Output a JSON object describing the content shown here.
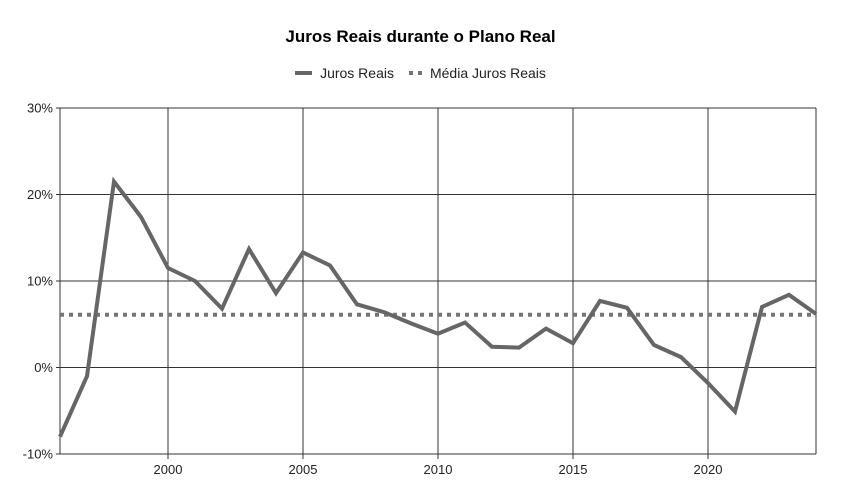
{
  "page": {
    "background": "#ffffff"
  },
  "header": {
    "title": "Juros Reais durante o Plano Real"
  },
  "legend": {
    "position": "top",
    "items": [
      {
        "label": "Juros Reais",
        "swatch": "solid-dash"
      },
      {
        "label": "Média Juros Reais",
        "swatch": "dotted"
      }
    ]
  },
  "chart_data": {
    "type": "line",
    "title": "Juros Reais durante o Plano Real",
    "xlabel": "",
    "ylabel": "",
    "xlim": [
      1996,
      2024
    ],
    "ylim": [
      -10,
      30
    ],
    "grid": true,
    "legend_position": "top",
    "x": [
      1996,
      1997,
      1998,
      1999,
      2000,
      2001,
      2002,
      2003,
      2004,
      2005,
      2006,
      2007,
      2008,
      2009,
      2010,
      2011,
      2012,
      2013,
      2014,
      2015,
      2016,
      2017,
      2018,
      2019,
      2020,
      2021,
      2022,
      2023,
      2024
    ],
    "series": [
      {
        "name": "Juros Reais",
        "style": "solid",
        "color": "#666666",
        "values": [
          -8.0,
          -1.0,
          21.5,
          17.4,
          11.5,
          10.0,
          6.8,
          13.7,
          8.6,
          13.3,
          11.8,
          7.3,
          6.4,
          5.1,
          3.9,
          5.2,
          2.4,
          2.3,
          4.5,
          2.8,
          7.7,
          6.9,
          2.6,
          1.2,
          -1.8,
          -5.1,
          7.0,
          8.4,
          6.2
        ]
      },
      {
        "name": "Média Juros Reais",
        "style": "dotted",
        "color": "#757575",
        "constant": 6.1
      }
    ],
    "y_ticks": [
      {
        "value": 30,
        "label": "30%"
      },
      {
        "value": 20,
        "label": "20%"
      },
      {
        "value": 10,
        "label": "10%"
      },
      {
        "value": 0,
        "label": "0%"
      },
      {
        "value": -10,
        "label": "-10%"
      }
    ],
    "x_ticks": [
      {
        "value": 2000,
        "label": "2000"
      },
      {
        "value": 2005,
        "label": "2005"
      },
      {
        "value": 2010,
        "label": "2010"
      },
      {
        "value": 2015,
        "label": "2015"
      },
      {
        "value": 2020,
        "label": "2020"
      }
    ],
    "gridline_color": "#333333"
  }
}
